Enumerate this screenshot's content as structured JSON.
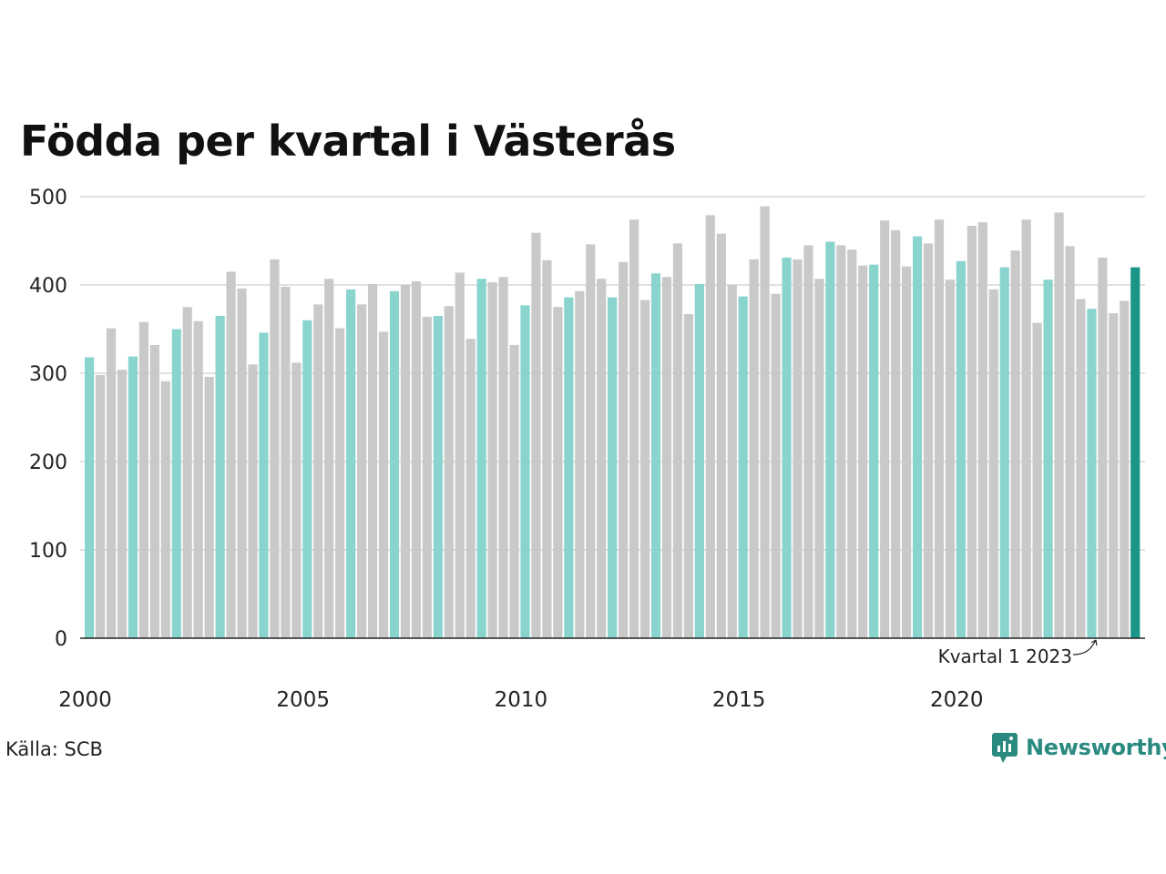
{
  "title": "Födda per kvartal i Västerås",
  "source": "Källa: SCB",
  "brand": "Newsworthy",
  "annotation": "Kvartal 1 2023",
  "colors": {
    "q1": "#8ad4ce",
    "other": "#c9c9c9",
    "highlight": "#1a9688",
    "grid": "#e1e1e1",
    "axis": "#222222",
    "brand": "#2a8a80"
  },
  "chart_data": {
    "type": "bar",
    "x_start": "2000 Q1",
    "x_end": "2023 Q1",
    "ylim": [
      0,
      500
    ],
    "yticks": [
      0,
      100,
      200,
      300,
      400,
      500
    ],
    "xtick_labels": [
      "2000",
      "2005",
      "2010",
      "2015",
      "2020"
    ],
    "x_label_quarter_index": [
      0,
      20,
      40,
      60,
      80
    ],
    "highlight_label": "Kvartal 1 2023",
    "values": [
      318,
      298,
      351,
      304,
      319,
      358,
      332,
      291,
      350,
      375,
      359,
      296,
      365,
      415,
      396,
      310,
      346,
      429,
      398,
      312,
      360,
      378,
      407,
      351,
      395,
      378,
      401,
      347,
      393,
      400,
      404,
      364,
      365,
      376,
      414,
      339,
      407,
      403,
      409,
      332,
      377,
      459,
      428,
      375,
      386,
      393,
      446,
      407,
      386,
      426,
      474,
      383,
      413,
      409,
      447,
      367,
      401,
      479,
      458,
      400,
      387,
      429,
      489,
      390,
      431,
      429,
      445,
      407,
      449,
      445,
      440,
      422,
      423,
      473,
      462,
      421,
      455,
      447,
      474,
      406,
      427,
      467,
      471,
      395,
      420,
      439,
      474,
      357,
      406,
      482,
      444,
      384,
      373,
      431,
      368,
      382,
      420
    ]
  }
}
